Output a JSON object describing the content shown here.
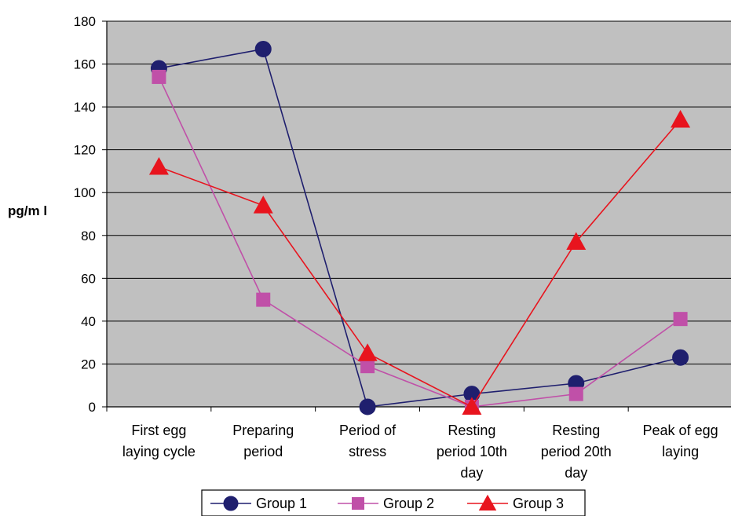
{
  "chart_data": {
    "type": "line",
    "ylabel": "pg/m l",
    "ylim": [
      0,
      180
    ],
    "yticks": [
      0,
      20,
      40,
      60,
      80,
      100,
      120,
      140,
      160,
      180
    ],
    "grid": true,
    "plot_background": "#c0c0c0",
    "legend_position": "bottom",
    "categories": [
      [
        "First egg",
        "laying cycle"
      ],
      [
        "Preparing",
        "period"
      ],
      [
        "Period of",
        "stress"
      ],
      [
        "Resting",
        "period 10th",
        "day"
      ],
      [
        "Resting",
        "period 20th",
        "day"
      ],
      [
        "Peak of egg",
        "laying"
      ]
    ],
    "series": [
      {
        "name": "Group 1",
        "color": "#1f1f6e",
        "marker": "circle",
        "values": [
          158,
          167,
          0,
          6,
          11,
          23
        ]
      },
      {
        "name": "Group 2",
        "color": "#c050a8",
        "marker": "square",
        "values": [
          154,
          50,
          19,
          0,
          6,
          41
        ]
      },
      {
        "name": "Group 3",
        "color": "#e8141e",
        "marker": "triangle",
        "values": [
          112,
          94,
          25,
          0,
          77,
          134
        ]
      }
    ]
  }
}
